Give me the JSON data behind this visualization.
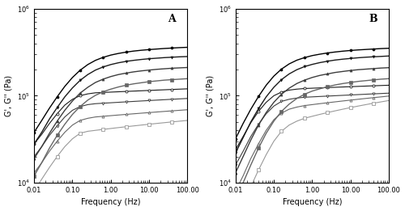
{
  "freq": [
    0.01,
    0.0158,
    0.0251,
    0.0398,
    0.0631,
    0.1,
    0.158,
    0.251,
    0.398,
    0.631,
    1.0,
    1.58,
    2.51,
    3.98,
    6.31,
    10.0,
    15.8,
    25.1,
    39.8,
    63.1,
    100.0
  ],
  "panel_A": {
    "G_prime": [
      [
        38000,
        52000,
        72000,
        97000,
        128000,
        162000,
        196000,
        228000,
        255000,
        276000,
        293000,
        306000,
        317000,
        326000,
        333000,
        339000,
        344000,
        349000,
        353000,
        357000,
        360000
      ],
      [
        28000,
        38000,
        54000,
        73000,
        97000,
        123000,
        150000,
        175000,
        197000,
        214000,
        228000,
        239000,
        248000,
        255000,
        261000,
        266000,
        270000,
        274000,
        277000,
        280000,
        282000
      ],
      [
        19000,
        26000,
        37000,
        51000,
        68000,
        87000,
        107000,
        125000,
        142000,
        155000,
        166000,
        175000,
        182000,
        188000,
        193000,
        197000,
        201000,
        204000,
        207000,
        209000,
        211000
      ],
      [
        12000,
        17000,
        25000,
        35000,
        47000,
        61000,
        75000,
        89000,
        101000,
        111000,
        119000,
        126000,
        132000,
        137000,
        141000,
        145000,
        148000,
        151000,
        153000,
        155000,
        157000
      ]
    ],
    "G_dbl_prime": [
      [
        28000,
        36000,
        48000,
        62000,
        78000,
        91000,
        100000,
        105000,
        108000,
        109000,
        110000,
        111000,
        112000,
        113000,
        114000,
        115000,
        116000,
        117000,
        118000,
        119000,
        120000
      ],
      [
        20000,
        26000,
        35000,
        45000,
        57000,
        68000,
        75000,
        79000,
        81000,
        82000,
        83000,
        84000,
        85000,
        86000,
        87000,
        88000,
        89000,
        90000,
        91000,
        92000,
        93000
      ],
      [
        13000,
        17000,
        23000,
        30000,
        38000,
        46000,
        52000,
        55000,
        57000,
        58000,
        59000,
        60000,
        61000,
        62000,
        63000,
        64000,
        65000,
        66000,
        67000,
        68000,
        69000
      ],
      [
        8000,
        11000,
        15000,
        20000,
        26000,
        32000,
        37000,
        39000,
        40000,
        41000,
        42000,
        43000,
        44000,
        45000,
        46000,
        47000,
        48000,
        49000,
        50000,
        51000,
        52000
      ]
    ]
  },
  "panel_B": {
    "G_prime": [
      [
        32000,
        48000,
        70000,
        98000,
        132000,
        168000,
        202000,
        232000,
        256000,
        274000,
        289000,
        300000,
        310000,
        318000,
        325000,
        331000,
        336000,
        340000,
        344000,
        348000,
        351000
      ],
      [
        22000,
        33000,
        50000,
        71000,
        97000,
        125000,
        153000,
        178000,
        199000,
        216000,
        229000,
        240000,
        249000,
        257000,
        263000,
        268000,
        273000,
        277000,
        280000,
        283000,
        286000
      ],
      [
        13000,
        20000,
        31000,
        46000,
        64000,
        84000,
        104000,
        122000,
        138000,
        151000,
        162000,
        171000,
        178000,
        185000,
        190000,
        195000,
        199000,
        202000,
        205000,
        208000,
        210000
      ],
      [
        6000,
        10000,
        16000,
        25000,
        37000,
        51000,
        66000,
        80000,
        93000,
        104000,
        113000,
        120000,
        127000,
        133000,
        138000,
        142000,
        146000,
        149000,
        152000,
        155000,
        157000
      ]
    ],
    "G_dbl_prime": [
      [
        24000,
        34000,
        49000,
        66000,
        84000,
        100000,
        110000,
        116000,
        119000,
        121000,
        122000,
        123000,
        124000,
        125000,
        126000,
        127000,
        128000,
        129000,
        130000,
        131000,
        132000
      ],
      [
        16000,
        23000,
        34000,
        47000,
        62000,
        76000,
        86000,
        91000,
        94000,
        96000,
        97000,
        98000,
        99000,
        100000,
        101000,
        102000,
        103000,
        104000,
        105000,
        106000,
        107000
      ],
      [
        8000,
        12000,
        19000,
        28000,
        40000,
        53000,
        63000,
        70000,
        74000,
        77000,
        79000,
        81000,
        83000,
        85000,
        87000,
        89000,
        91000,
        93000,
        95000,
        97000,
        99000
      ],
      [
        3500,
        5500,
        9000,
        14000,
        21000,
        30000,
        39000,
        46000,
        51000,
        55000,
        58000,
        61000,
        64000,
        67000,
        70000,
        73000,
        76000,
        79000,
        82000,
        85000,
        88000
      ]
    ]
  },
  "colors_prime": [
    "#000000",
    "#1a1a1a",
    "#3d3d3d",
    "#666666"
  ],
  "colors_dbl_prime": [
    "#1a1a1a",
    "#3d3d3d",
    "#666666",
    "#999999"
  ],
  "markers_prime": [
    "o",
    "v",
    "^",
    "s"
  ],
  "markers_dbl_prime": [
    "o",
    "v",
    "^",
    "s"
  ],
  "ylabel": "G', G'' (Pa)",
  "xlabel": "Frequency (Hz)",
  "ylim": [
    10000.0,
    1000000.0
  ],
  "xlim": [
    0.01,
    100.0
  ],
  "label_A": "A",
  "label_B": "B",
  "markevery": 3
}
